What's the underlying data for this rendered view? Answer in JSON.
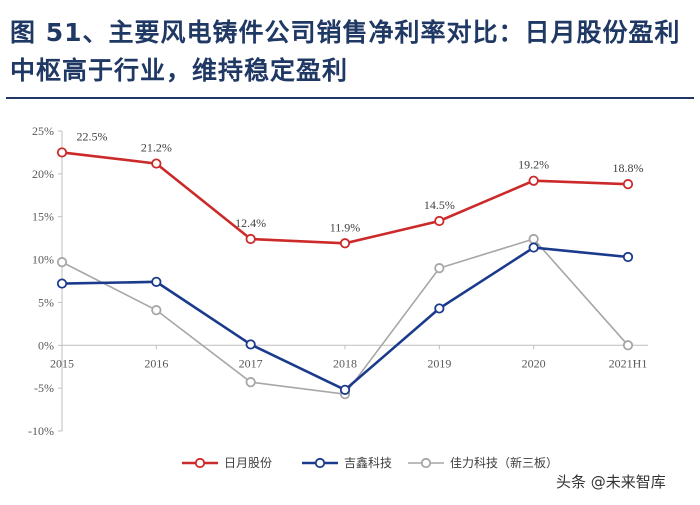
{
  "title": "图 51、主要风电铸件公司销售净利率对比：日月股份盈利中枢高于行业，维持稳定盈利",
  "watermark": "头条 @未来智库",
  "chart_data": {
    "type": "line",
    "categories": [
      "2015",
      "2016",
      "2017",
      "2018",
      "2019",
      "2020",
      "2021H1"
    ],
    "ylim": [
      -10,
      25
    ],
    "yticks": [
      "25%",
      "20%",
      "15%",
      "10%",
      "5%",
      "0%",
      "-5%",
      "-10%"
    ],
    "grid": false,
    "legend_position": "bottom",
    "series": [
      {
        "name": "日月股份",
        "values": [
          22.5,
          21.2,
          12.4,
          11.9,
          14.5,
          19.2,
          18.8
        ],
        "color": "#cc2a2a",
        "labels": [
          "22.5%",
          "21.2%",
          "12.4%",
          "11.9%",
          "14.5%",
          "19.2%",
          "18.8%"
        ]
      },
      {
        "name": "吉鑫科技",
        "values": [
          7.2,
          7.4,
          0.1,
          -5.2,
          4.3,
          11.4,
          10.3
        ],
        "color": "#1a3a8c"
      },
      {
        "name": "佳力科技（新三板）",
        "values": [
          9.7,
          4.1,
          -4.3,
          -5.7,
          9.0,
          12.4,
          0.0
        ],
        "color": "#a6a6a6"
      }
    ]
  }
}
